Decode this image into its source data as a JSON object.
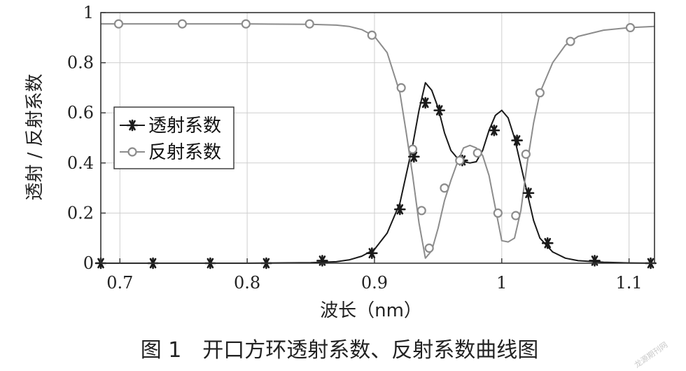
{
  "chart_data": {
    "type": "line",
    "xlabel": "波长（nm）",
    "ylabel": "透射 / 反射系数",
    "xlim": [
      0.685,
      1.12
    ],
    "ylim": [
      0,
      1
    ],
    "xticks": [
      0.7,
      0.8,
      0.9,
      1.0,
      1.1
    ],
    "xtick_labels": [
      "0.7",
      "0.8",
      "0.9",
      "1",
      "1.1"
    ],
    "yticks": [
      0,
      0.2,
      0.4,
      0.6,
      0.8,
      1.0
    ],
    "ytick_labels": [
      "0",
      "0.2",
      "0.4",
      "0.6",
      "0.8",
      "1"
    ],
    "grid": true,
    "legend_position": "middle-left",
    "series": [
      {
        "name": "透射系数",
        "color": "#1a1a1a",
        "marker": "asterisk",
        "x": [
          0.685,
          0.7,
          0.75,
          0.8,
          0.85,
          0.87,
          0.88,
          0.89,
          0.9,
          0.91,
          0.92,
          0.93,
          0.935,
          0.94,
          0.945,
          0.95,
          0.955,
          0.96,
          0.965,
          0.97,
          0.975,
          0.98,
          0.985,
          0.99,
          0.995,
          1.0,
          1.005,
          1.01,
          1.015,
          1.02,
          1.025,
          1.03,
          1.04,
          1.05,
          1.06,
          1.08,
          1.1,
          1.12
        ],
        "y": [
          0.0,
          0.0,
          0.0,
          0.0,
          0.002,
          0.006,
          0.013,
          0.028,
          0.055,
          0.12,
          0.24,
          0.47,
          0.61,
          0.72,
          0.69,
          0.62,
          0.52,
          0.45,
          0.42,
          0.405,
          0.4,
          0.405,
          0.45,
          0.53,
          0.59,
          0.61,
          0.58,
          0.5,
          0.39,
          0.28,
          0.17,
          0.1,
          0.045,
          0.02,
          0.01,
          0.004,
          0.001,
          0.0
        ],
        "marker_x": [
          0.685,
          0.726,
          0.771,
          0.815,
          0.859,
          0.898,
          0.92,
          0.931,
          0.94,
          0.951,
          0.969,
          0.994,
          1.012,
          1.021,
          1.036,
          1.073,
          1.117
        ],
        "marker_y": [
          0.0,
          0.0,
          0.0,
          0.0,
          0.01,
          0.04,
          0.215,
          0.425,
          0.64,
          0.61,
          0.41,
          0.53,
          0.49,
          0.28,
          0.08,
          0.01,
          0.0
        ]
      },
      {
        "name": "反射系数",
        "color": "#8c8c8c",
        "marker": "circle",
        "x": [
          0.685,
          0.7,
          0.75,
          0.8,
          0.85,
          0.87,
          0.88,
          0.89,
          0.9,
          0.91,
          0.92,
          0.925,
          0.93,
          0.935,
          0.94,
          0.945,
          0.95,
          0.955,
          0.96,
          0.965,
          0.97,
          0.975,
          0.98,
          0.985,
          0.99,
          0.995,
          1.0,
          1.005,
          1.01,
          1.015,
          1.02,
          1.025,
          1.03,
          1.04,
          1.05,
          1.06,
          1.08,
          1.1,
          1.12
        ],
        "y": [
          0.955,
          0.955,
          0.955,
          0.955,
          0.953,
          0.95,
          0.945,
          0.932,
          0.905,
          0.84,
          0.68,
          0.52,
          0.35,
          0.16,
          0.02,
          0.05,
          0.14,
          0.25,
          0.33,
          0.4,
          0.46,
          0.47,
          0.46,
          0.43,
          0.35,
          0.22,
          0.09,
          0.085,
          0.1,
          0.21,
          0.4,
          0.56,
          0.68,
          0.8,
          0.87,
          0.905,
          0.93,
          0.94,
          0.945
        ],
        "marker_x": [
          0.699,
          0.749,
          0.799,
          0.849,
          0.898,
          0.921,
          0.93,
          0.937,
          0.943,
          0.955,
          0.967,
          0.981,
          0.997,
          1.011,
          1.019,
          1.03,
          1.054,
          1.101
        ],
        "marker_y": [
          0.955,
          0.955,
          0.955,
          0.955,
          0.91,
          0.7,
          0.455,
          0.21,
          0.06,
          0.3,
          0.41,
          0.44,
          0.2,
          0.19,
          0.435,
          0.68,
          0.885,
          0.94
        ]
      }
    ]
  },
  "caption": "图 1　开口方环透射系数、反射系数曲线图",
  "watermark": "龙源期刊网"
}
